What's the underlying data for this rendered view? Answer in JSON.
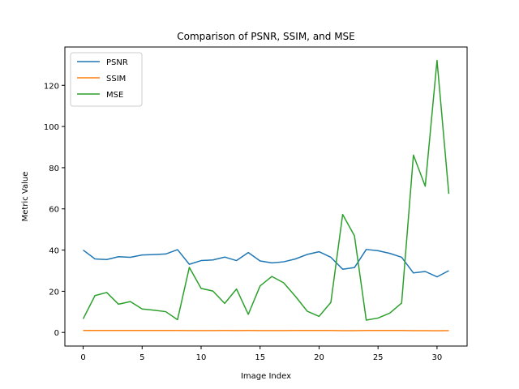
{
  "chart_data": {
    "type": "line",
    "title": "Comparison of PSNR, SSIM, and MSE",
    "xlabel": "Image Index",
    "ylabel": "Metric Value",
    "xlim": [
      -1.55,
      32.55
    ],
    "ylim": [
      -6.6,
      138.6
    ],
    "x_ticks": [
      0,
      5,
      10,
      15,
      20,
      25,
      30
    ],
    "y_ticks": [
      0,
      20,
      40,
      60,
      80,
      100,
      120
    ],
    "grid": false,
    "legend_position": "top-left",
    "x": [
      0,
      1,
      2,
      3,
      4,
      5,
      6,
      7,
      8,
      9,
      10,
      11,
      12,
      13,
      14,
      15,
      16,
      17,
      18,
      19,
      20,
      21,
      22,
      23,
      24,
      25,
      26,
      27,
      28,
      29,
      30,
      31
    ],
    "series": [
      {
        "name": "PSNR",
        "color": "#1f77b4",
        "values": [
          40.0,
          35.7,
          35.4,
          36.8,
          36.5,
          37.6,
          37.8,
          38.1,
          40.2,
          33.1,
          34.9,
          35.2,
          36.6,
          34.9,
          38.8,
          34.7,
          33.8,
          34.3,
          35.7,
          37.9,
          39.2,
          36.5,
          30.7,
          31.5,
          40.3,
          39.7,
          38.4,
          36.5,
          28.9,
          29.6,
          27.0,
          30.0
        ]
      },
      {
        "name": "SSIM",
        "color": "#ff7f0e",
        "values": [
          1.0,
          0.95,
          0.95,
          0.97,
          0.96,
          0.97,
          0.97,
          0.97,
          0.98,
          0.92,
          0.94,
          0.94,
          0.96,
          0.94,
          0.97,
          0.94,
          0.93,
          0.93,
          0.95,
          0.97,
          0.98,
          0.96,
          0.88,
          0.89,
          0.98,
          0.98,
          0.97,
          0.96,
          0.86,
          0.87,
          0.83,
          0.88
        ]
      },
      {
        "name": "MSE",
        "color": "#2ca02c",
        "values": [
          6.6,
          17.9,
          19.4,
          13.7,
          15.0,
          11.4,
          10.8,
          10.1,
          6.2,
          31.6,
          21.4,
          20.1,
          14.1,
          21.1,
          8.8,
          22.6,
          27.2,
          24.1,
          17.5,
          10.3,
          7.8,
          14.6,
          57.3,
          46.9,
          6.0,
          7.0,
          9.4,
          14.3,
          86.1,
          71.0,
          132.1,
          67.3
        ]
      }
    ]
  }
}
